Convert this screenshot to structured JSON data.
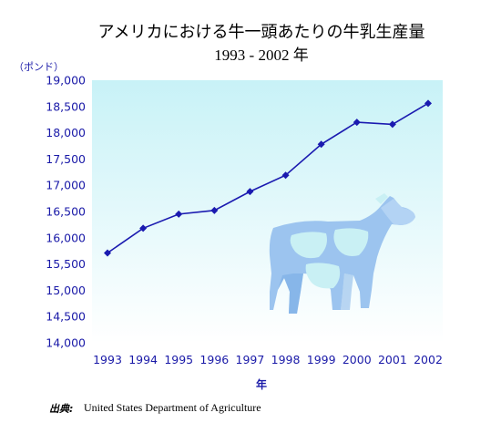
{
  "chart_data": {
    "type": "line",
    "title": "アメリカにおける牛一頭あたりの牛乳生産量",
    "subtitle": "1993 - 2002 年",
    "ylabel": "（ポンド）",
    "xlabel": "年",
    "ylim": [
      14000,
      19000
    ],
    "yticks": [
      14000,
      14500,
      15000,
      15500,
      16000,
      16500,
      17000,
      17500,
      18000,
      18500,
      19000
    ],
    "ytick_labels": [
      "14,000",
      "14,500",
      "15,000",
      "15,500",
      "16,000",
      "16,500",
      "17,000",
      "17,500",
      "18,000",
      "18,500",
      "19,000"
    ],
    "categories": [
      "1993",
      "1994",
      "1995",
      "1996",
      "1997",
      "1998",
      "1999",
      "2000",
      "2001",
      "2002"
    ],
    "values": [
      15710,
      16180,
      16450,
      16520,
      16880,
      17190,
      17780,
      18200,
      18160,
      18560
    ],
    "grid": false,
    "colors": {
      "line": "#1a1ab0",
      "marker": "#1a1ab0",
      "axis_text": "#1a1aa8",
      "plot_bg_top": "#c8f2f7",
      "plot_bg_bottom": "#ffffff",
      "cow_fill": "#9cc4ef",
      "cow_light": "#c9f0f4"
    }
  },
  "decoration": {
    "icon": "cow-icon"
  },
  "source": {
    "label": "出典:",
    "value": "United States Department of Agriculture"
  }
}
